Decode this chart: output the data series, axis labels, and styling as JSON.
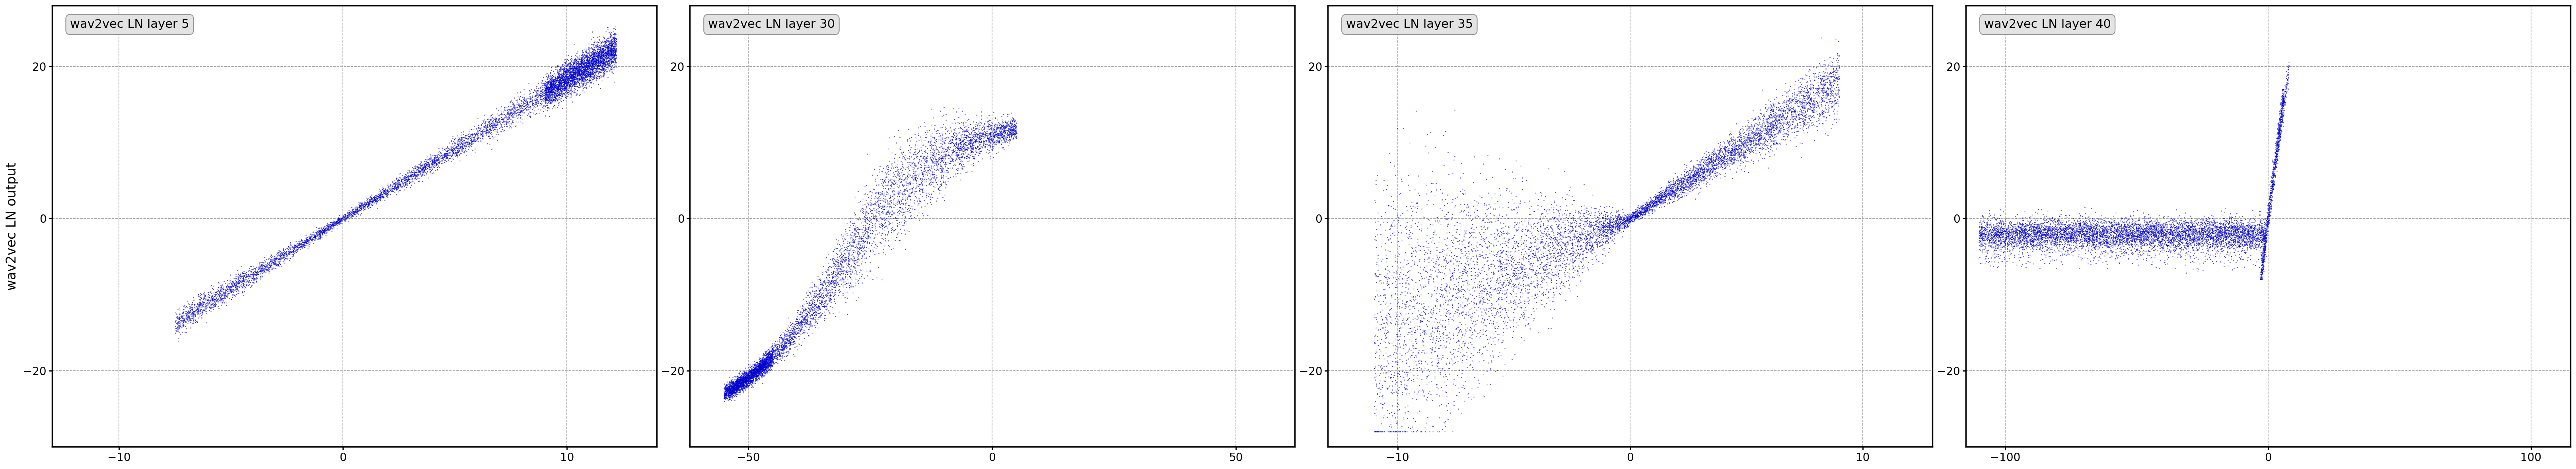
{
  "panels": [
    {
      "title": "wav2vec LN layer 5",
      "xlim": [
        -13,
        14
      ],
      "ylim": [
        -30,
        28
      ],
      "xticks": [
        -10,
        0,
        10
      ],
      "yticks": [
        -20,
        0,
        20
      ]
    },
    {
      "title": "wav2vec LN layer 30",
      "xlim": [
        -62,
        62
      ],
      "ylim": [
        -30,
        28
      ],
      "xticks": [
        -50,
        0,
        50
      ],
      "yticks": [
        -20,
        0,
        20
      ]
    },
    {
      "title": "wav2vec LN layer 35",
      "xlim": [
        -13,
        13
      ],
      "ylim": [
        -30,
        28
      ],
      "xticks": [
        -10,
        0,
        10
      ],
      "yticks": [
        -20,
        0,
        20
      ]
    },
    {
      "title": "wav2vec LN layer 40",
      "xlim": [
        -115,
        115
      ],
      "ylim": [
        -30,
        28
      ],
      "xticks": [
        -100,
        0,
        100
      ],
      "yticks": [
        -20,
        0,
        20
      ]
    }
  ],
  "dot_color": "#0000cc",
  "dot_size": 3.0,
  "ylabel": "wav2vec LN output",
  "background_color": "#ffffff",
  "grid_color": "#999999",
  "grid_linestyle": "--",
  "tick_labelsize": 20,
  "ylabel_fontsize": 24,
  "title_fontsize": 22
}
